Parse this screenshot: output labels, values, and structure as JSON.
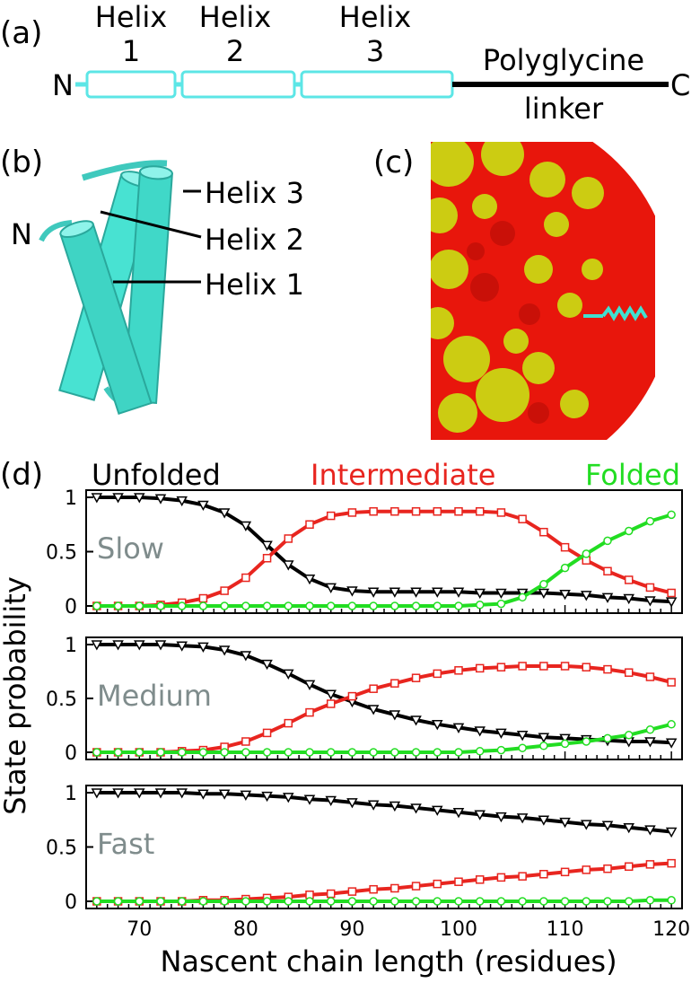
{
  "panel_labels": {
    "a": "(a)",
    "b": "(b)",
    "c": "(c)",
    "d": "(d)"
  },
  "panel_a": {
    "helix_labels": [
      {
        "word": "Helix",
        "num": "1"
      },
      {
        "word": "Helix",
        "num": "2"
      },
      {
        "word": "Helix",
        "num": "3"
      }
    ],
    "n_term": "N",
    "c_term": "C",
    "linker_top": "Polyglycine",
    "linker_bottom": "linker",
    "helix_color": "#5ce6e6",
    "linker_color": "#000000"
  },
  "panel_b": {
    "n_term": "N",
    "labels": [
      "Helix 3",
      "Helix 2",
      "Helix 1"
    ],
    "helix_color": "#40e0d0"
  },
  "panel_c": {
    "colors": {
      "core": "#e8160c",
      "surface": "#d4d414",
      "helix": "#40e0d0"
    }
  },
  "legend": {
    "unfolded": "Unfolded",
    "intermediate": "Intermediate",
    "folded": "Folded"
  },
  "colors": {
    "unfolded": "#000000",
    "intermediate": "#e8251f",
    "folded": "#22dd22",
    "speed_label": "#7f8c8c"
  },
  "chart_data": {
    "type": "line",
    "xlabel": "Nascent chain length (residues)",
    "ylabel": "State probability",
    "xlim": [
      65,
      121
    ],
    "ylim": [
      0,
      1
    ],
    "x_ticks": [
      70,
      80,
      90,
      100,
      110,
      120
    ],
    "y_ticks": [
      0,
      0.5,
      1
    ],
    "y_tick_labels": [
      "0",
      "0.5",
      "1"
    ],
    "x": [
      66,
      68,
      70,
      72,
      74,
      76,
      78,
      80,
      82,
      84,
      86,
      88,
      90,
      92,
      94,
      96,
      98,
      100,
      102,
      104,
      106,
      108,
      110,
      112,
      114,
      116,
      118,
      120
    ],
    "panels": [
      {
        "label": "Slow",
        "series": [
          {
            "name": "Unfolded",
            "values": [
              1.0,
              1.0,
              1.0,
              0.99,
              0.97,
              0.93,
              0.86,
              0.74,
              0.56,
              0.38,
              0.25,
              0.17,
              0.14,
              0.13,
              0.13,
              0.13,
              0.13,
              0.13,
              0.12,
              0.12,
              0.12,
              0.12,
              0.11,
              0.1,
              0.08,
              0.07,
              0.05,
              0.04
            ]
          },
          {
            "name": "Intermediate",
            "values": [
              0.0,
              0.0,
              0.0,
              0.01,
              0.03,
              0.07,
              0.14,
              0.26,
              0.44,
              0.62,
              0.75,
              0.83,
              0.86,
              0.87,
              0.87,
              0.87,
              0.87,
              0.87,
              0.87,
              0.86,
              0.8,
              0.68,
              0.54,
              0.42,
              0.32,
              0.24,
              0.17,
              0.12
            ]
          },
          {
            "name": "Folded",
            "values": [
              0,
              0,
              0,
              0,
              0,
              0,
              0,
              0,
              0,
              0,
              0,
              0,
              0,
              0,
              0,
              0,
              0,
              0,
              0.01,
              0.02,
              0.08,
              0.2,
              0.35,
              0.48,
              0.6,
              0.69,
              0.78,
              0.84
            ]
          }
        ]
      },
      {
        "label": "Medium",
        "series": [
          {
            "name": "Unfolded",
            "values": [
              1.0,
              1.0,
              1.0,
              1.0,
              0.99,
              0.98,
              0.95,
              0.9,
              0.82,
              0.73,
              0.63,
              0.54,
              0.47,
              0.4,
              0.35,
              0.3,
              0.26,
              0.23,
              0.2,
              0.18,
              0.16,
              0.14,
              0.13,
              0.12,
              0.11,
              0.1,
              0.1,
              0.09
            ]
          },
          {
            "name": "Intermediate",
            "values": [
              0.0,
              0.0,
              0.0,
              0.0,
              0.01,
              0.02,
              0.05,
              0.1,
              0.18,
              0.27,
              0.37,
              0.45,
              0.52,
              0.59,
              0.64,
              0.69,
              0.73,
              0.76,
              0.78,
              0.79,
              0.8,
              0.8,
              0.8,
              0.79,
              0.77,
              0.74,
              0.7,
              0.65
            ]
          },
          {
            "name": "Folded",
            "values": [
              0,
              0,
              0,
              0,
              0,
              0,
              0,
              0,
              0,
              0,
              0,
              0,
              0,
              0,
              0,
              0,
              0,
              0,
              0.01,
              0.02,
              0.04,
              0.06,
              0.08,
              0.1,
              0.13,
              0.16,
              0.21,
              0.26
            ]
          }
        ]
      },
      {
        "label": "Fast",
        "series": [
          {
            "name": "Unfolded",
            "values": [
              1.0,
              1.0,
              1.0,
              1.0,
              1.0,
              0.99,
              0.99,
              0.98,
              0.97,
              0.96,
              0.94,
              0.93,
              0.91,
              0.89,
              0.88,
              0.86,
              0.84,
              0.82,
              0.8,
              0.78,
              0.77,
              0.75,
              0.73,
              0.71,
              0.7,
              0.68,
              0.66,
              0.64
            ]
          },
          {
            "name": "Intermediate",
            "values": [
              0.0,
              0.0,
              0.0,
              0.0,
              0.0,
              0.01,
              0.01,
              0.02,
              0.03,
              0.04,
              0.06,
              0.07,
              0.09,
              0.11,
              0.12,
              0.14,
              0.16,
              0.18,
              0.2,
              0.22,
              0.23,
              0.25,
              0.27,
              0.29,
              0.3,
              0.32,
              0.34,
              0.35
            ]
          },
          {
            "name": "Folded",
            "values": [
              0,
              0,
              0,
              0,
              0,
              0,
              0,
              0,
              0,
              0,
              0,
              0,
              0,
              0,
              0,
              0,
              0,
              0,
              0,
              0,
              0,
              0,
              0,
              0,
              0,
              0,
              0.01,
              0.01
            ]
          }
        ]
      }
    ]
  }
}
